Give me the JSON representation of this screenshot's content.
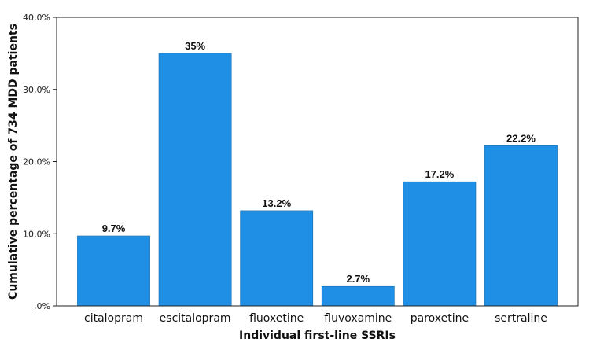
{
  "chart_data": {
    "type": "bar",
    "categories": [
      "citalopram",
      "escitalopram",
      "fluoxetine",
      "fluvoxamine",
      "paroxetine",
      "sertraline"
    ],
    "values": [
      9.7,
      35,
      13.2,
      2.7,
      17.2,
      22.2
    ],
    "data_labels": [
      "9.7%",
      "35%",
      "13.2%",
      "2.7%",
      "17.2%",
      "22.2%"
    ],
    "y_ticks": [
      0,
      10,
      20,
      30,
      40
    ],
    "y_tick_labels": [
      ",0%",
      "10,0%",
      "20,0%",
      "30,0%",
      "40,0%"
    ],
    "ylim": [
      0,
      40
    ],
    "xlabel": "Individual first-line SSRIs",
    "ylabel": "Cumulative percentage of 734 MDD patients",
    "title": "",
    "grid": false,
    "colors": {
      "bar": "#1f8fe5",
      "axis": "#222222",
      "background": "#ffffff"
    }
  }
}
